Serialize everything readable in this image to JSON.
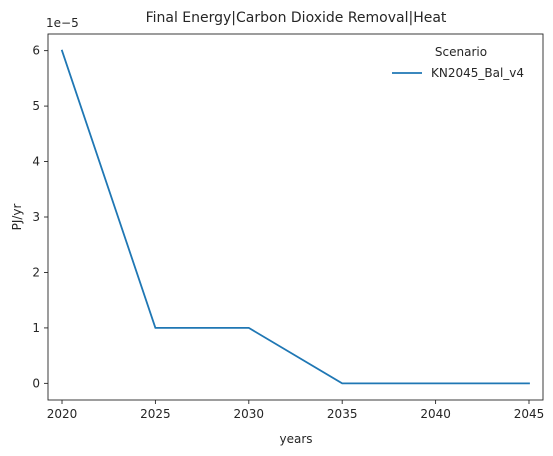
{
  "chart_data": {
    "type": "line",
    "title": "Final Energy|Carbon Dioxide Removal|Heat",
    "xlabel": "years",
    "ylabel": "PJ/yr",
    "y_offset_label": "1e−5",
    "x": [
      2020,
      2025,
      2030,
      2035,
      2040,
      2045
    ],
    "x_ticks": [
      "2020",
      "2025",
      "2030",
      "2035",
      "2040",
      "2045"
    ],
    "y_ticks": [
      "0",
      "1",
      "2",
      "3",
      "4",
      "5",
      "6"
    ],
    "y_scale_factor": 1e-05,
    "xlim": [
      2019.25,
      2045.75
    ],
    "ylim": [
      -0.3,
      6.3
    ],
    "grid": false,
    "legend": {
      "title": "Scenario",
      "placement": "top-right"
    },
    "series": [
      {
        "name": "KN2045_Bal_v4",
        "color": "#1f77b4",
        "values": [
          6,
          1,
          1,
          0,
          0,
          0
        ]
      }
    ]
  }
}
